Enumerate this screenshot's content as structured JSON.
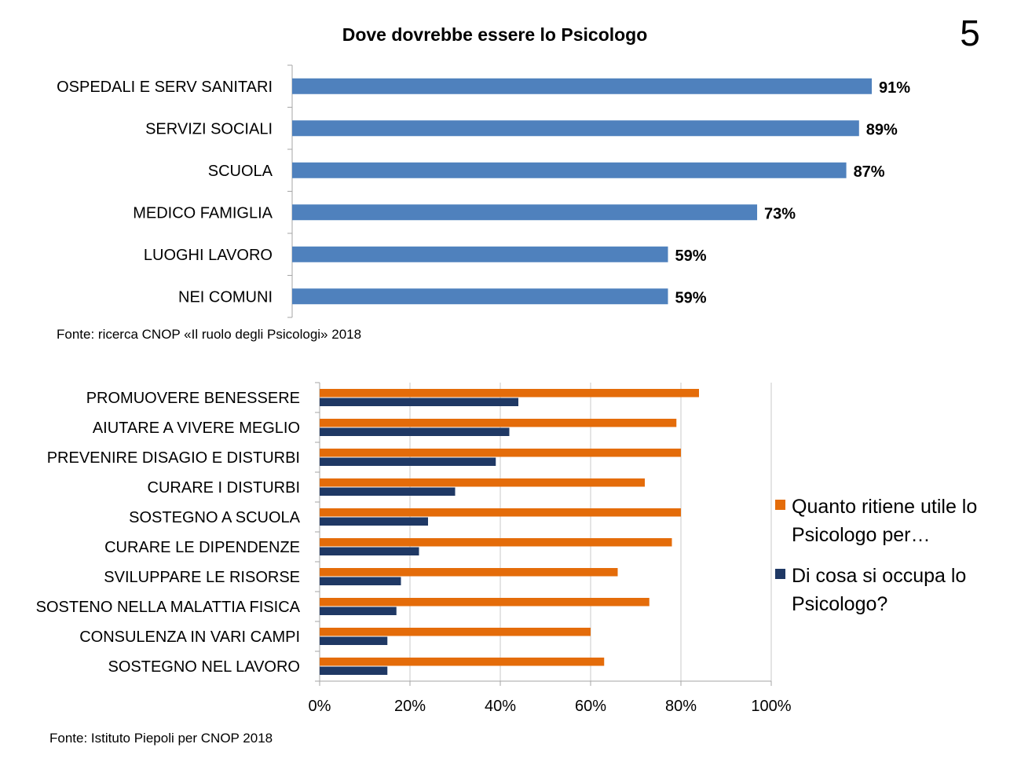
{
  "slide_number": "5",
  "charts_text": {
    "top_title": "Dove dovrebbe essere lo Psicologo",
    "top_source": "Fonte: ricerca CNOP «Il ruolo degli Psicologi» 2018",
    "bottom_source": "Fonte: Istituto Piepoli per CNOP 2018"
  },
  "colors": {
    "top_bar": "#4f81bd",
    "orange": "#e46c0a",
    "navy": "#1f3864",
    "axis": "#a6a6a6",
    "grid": "#c8c8c8"
  },
  "chart_data": [
    {
      "type": "bar",
      "orientation": "horizontal",
      "title": "Dove dovrebbe essere lo Psicologo",
      "categories": [
        "OSPEDALI E SERV SANITARI",
        "SERVIZI SOCIALI",
        "SCUOLA",
        "MEDICO FAMIGLIA",
        "LUOGHI LAVORO",
        "NEI COMUNI"
      ],
      "values": [
        91,
        89,
        87,
        73,
        59,
        59
      ],
      "data_labels": [
        "91%",
        "89%",
        "87%",
        "73%",
        "59%",
        "59%"
      ],
      "xlim": [
        0,
        100
      ],
      "unit": "%"
    },
    {
      "type": "bar",
      "orientation": "horizontal",
      "title": "",
      "categories": [
        "PROMUOVERE BENESSERE",
        "AIUTARE A VIVERE MEGLIO",
        "PREVENIRE DISAGIO E DISTURBI",
        "CURARE I DISTURBI",
        "SOSTEGNO A SCUOLA",
        "CURARE LE DIPENDENZE",
        "SVILUPPARE LE RISORSE",
        "SOSTENO NELLA MALATTIA FISICA",
        "CONSULENZA IN VARI CAMPI",
        "SOSTEGNO NEL LAVORO"
      ],
      "series": [
        {
          "name": "Quanto ritiene utile lo Psicologo per…",
          "values": [
            84,
            79,
            80,
            72,
            80,
            78,
            66,
            73,
            60,
            63
          ]
        },
        {
          "name": "Di cosa si occupa lo Psicologo?",
          "values": [
            44,
            42,
            39,
            30,
            24,
            22,
            18,
            17,
            15,
            15
          ]
        }
      ],
      "xlim": [
        0,
        100
      ],
      "xticks": [
        0,
        20,
        40,
        60,
        80,
        100
      ],
      "xtick_labels": [
        "0%",
        "20%",
        "40%",
        "60%",
        "80%",
        "100%"
      ],
      "legend_position": "right",
      "legend_lines": [
        [
          "Quanto ritiene utile lo",
          "Psicologo per…"
        ],
        [
          "Di cosa si occupa lo",
          "Psicologo?"
        ]
      ],
      "grid": true
    }
  ]
}
